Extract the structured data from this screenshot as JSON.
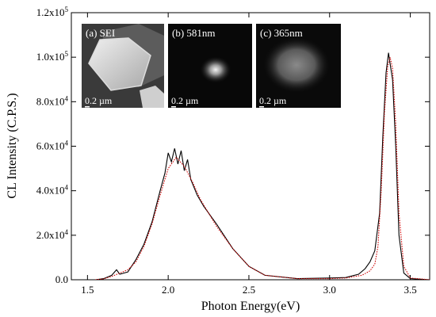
{
  "chart_data": {
    "type": "line",
    "xlabel": "Photon Energy(eV)",
    "ylabel": "CL Intensity (C.P.S.)",
    "xlim": [
      1.4,
      3.62
    ],
    "ylim": [
      0,
      120000
    ],
    "x_ticks": [
      {
        "value": 1.5,
        "label": "1.5"
      },
      {
        "value": 2.0,
        "label": "2.0"
      },
      {
        "value": 2.5,
        "label": "2.5"
      },
      {
        "value": 3.0,
        "label": "3.0"
      },
      {
        "value": 3.5,
        "label": "3.5"
      }
    ],
    "y_ticks": [
      {
        "value": 0,
        "mant": "0.0",
        "exp": ""
      },
      {
        "value": 20000,
        "mant": "2.0x10",
        "exp": "4"
      },
      {
        "value": 40000,
        "mant": "4.0x10",
        "exp": "4"
      },
      {
        "value": 60000,
        "mant": "6.0x10",
        "exp": "4"
      },
      {
        "value": 80000,
        "mant": "8.0x10",
        "exp": "4"
      },
      {
        "value": 100000,
        "mant": "1.0x10",
        "exp": "5"
      },
      {
        "value": 120000,
        "mant": "1.2x10",
        "exp": "5"
      }
    ],
    "series": [
      {
        "color": "#000000",
        "style": "solid",
        "points": [
          [
            1.55,
            0
          ],
          [
            1.6,
            500
          ],
          [
            1.65,
            2000
          ],
          [
            1.68,
            4500
          ],
          [
            1.7,
            2500
          ],
          [
            1.75,
            3500
          ],
          [
            1.8,
            9000
          ],
          [
            1.85,
            16000
          ],
          [
            1.9,
            26000
          ],
          [
            1.95,
            40000
          ],
          [
            1.98,
            48000
          ],
          [
            2.0,
            57000
          ],
          [
            2.02,
            53000
          ],
          [
            2.04,
            59000
          ],
          [
            2.06,
            52000
          ],
          [
            2.08,
            58000
          ],
          [
            2.1,
            49000
          ],
          [
            2.12,
            54000
          ],
          [
            2.14,
            45000
          ],
          [
            2.18,
            38000
          ],
          [
            2.22,
            33000
          ],
          [
            2.3,
            25000
          ],
          [
            2.4,
            14000
          ],
          [
            2.5,
            6000
          ],
          [
            2.6,
            2000
          ],
          [
            2.8,
            500
          ],
          [
            3.0,
            800
          ],
          [
            3.1,
            1000
          ],
          [
            3.18,
            2500
          ],
          [
            3.22,
            5000
          ],
          [
            3.25,
            8000
          ],
          [
            3.28,
            13000
          ],
          [
            3.31,
            30000
          ],
          [
            3.33,
            65000
          ],
          [
            3.35,
            93000
          ],
          [
            3.365,
            102000
          ],
          [
            3.375,
            97000
          ],
          [
            3.39,
            90000
          ],
          [
            3.41,
            60000
          ],
          [
            3.43,
            20000
          ],
          [
            3.46,
            3000
          ],
          [
            3.5,
            500
          ],
          [
            3.62,
            0
          ]
        ]
      },
      {
        "color": "#cc0000",
        "style": "dotted",
        "points": [
          [
            1.55,
            0
          ],
          [
            1.6,
            400
          ],
          [
            1.65,
            1500
          ],
          [
            1.7,
            3000
          ],
          [
            1.75,
            4500
          ],
          [
            1.8,
            8000
          ],
          [
            1.85,
            15000
          ],
          [
            1.9,
            25000
          ],
          [
            1.95,
            38000
          ],
          [
            2.0,
            50000
          ],
          [
            2.05,
            55000
          ],
          [
            2.1,
            51000
          ],
          [
            2.15,
            44000
          ],
          [
            2.2,
            36000
          ],
          [
            2.3,
            24000
          ],
          [
            2.4,
            14000
          ],
          [
            2.5,
            6000
          ],
          [
            2.6,
            2000
          ],
          [
            2.8,
            500
          ],
          [
            3.0,
            500
          ],
          [
            3.1,
            800
          ],
          [
            3.2,
            2000
          ],
          [
            3.25,
            4000
          ],
          [
            3.28,
            7000
          ],
          [
            3.3,
            15000
          ],
          [
            3.32,
            40000
          ],
          [
            3.34,
            75000
          ],
          [
            3.36,
            96000
          ],
          [
            3.375,
            100000
          ],
          [
            3.39,
            95000
          ],
          [
            3.41,
            70000
          ],
          [
            3.43,
            30000
          ],
          [
            3.46,
            6000
          ],
          [
            3.5,
            800
          ],
          [
            3.62,
            0
          ]
        ]
      }
    ],
    "insets": [
      {
        "label": "(a) SEI",
        "scale_label": "0.2 µm"
      },
      {
        "label": "(b) 581nm",
        "scale_label": "0.2 µm"
      },
      {
        "label": "(c) 365nm",
        "scale_label": "0.2 µm"
      }
    ]
  }
}
